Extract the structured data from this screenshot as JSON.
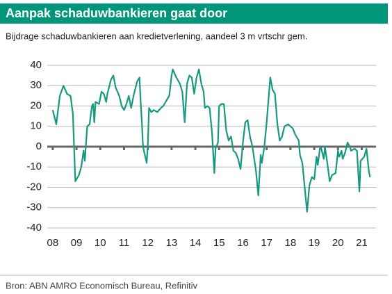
{
  "chart_data": {
    "type": "line",
    "title": "Aanpak schaduwbankieren gaat door",
    "subtitle": "Bijdrage schaduwbankieren aan kredietverlening, aandeel 3 m vrtschr gem.",
    "source": "Bron: ABN AMRO Economisch Bureau, Refinitiv",
    "x": [
      2008.0,
      2008.15,
      2008.3,
      2008.45,
      2008.6,
      2008.75,
      2008.85,
      2008.95,
      2009.1,
      2009.2,
      2009.3,
      2009.35,
      2009.45,
      2009.55,
      2009.65,
      2009.7,
      2009.75,
      2009.8,
      2009.95,
      2010.05,
      2010.15,
      2010.25,
      2010.3,
      2010.45,
      2010.55,
      2010.65,
      2010.8,
      2010.9,
      2011.0,
      2011.1,
      2011.2,
      2011.3,
      2011.4,
      2011.55,
      2011.65,
      2011.7,
      2011.75,
      2011.8,
      2011.95,
      2012.0,
      2012.05,
      2012.15,
      2012.25,
      2012.4,
      2012.55,
      2012.65,
      2012.8,
      2012.9,
      2013.0,
      2013.05,
      2013.2,
      2013.35,
      2013.45,
      2013.55,
      2013.65,
      2013.75,
      2013.85,
      2013.95,
      2014.05,
      2014.15,
      2014.25,
      2014.35,
      2014.4,
      2014.5,
      2014.6,
      2014.7,
      2014.8,
      2014.85,
      2014.95,
      2015.0,
      2015.1,
      2015.2,
      2015.3,
      2015.4,
      2015.5,
      2015.6,
      2015.7,
      2015.8,
      2015.9,
      2016.0,
      2016.1,
      2016.2,
      2016.3,
      2016.4,
      2016.55,
      2016.65,
      2016.75,
      2016.8,
      2016.9,
      2017.0,
      2017.15,
      2017.25,
      2017.35,
      2017.45,
      2017.55,
      2017.65,
      2017.75,
      2017.9,
      2018.0,
      2018.1,
      2018.2,
      2018.35,
      2018.4,
      2018.5,
      2018.6,
      2018.7,
      2018.8,
      2018.9,
      2019.0,
      2019.1,
      2019.15,
      2019.25,
      2019.3,
      2019.4,
      2019.45,
      2019.55,
      2019.65,
      2019.75,
      2019.9,
      2020.0,
      2020.05,
      2020.15,
      2020.2,
      2020.3,
      2020.4,
      2020.5,
      2020.55,
      2020.7,
      2020.8,
      2020.9,
      2020.95,
      2021.1,
      2021.2,
      2021.3,
      2021.35
    ],
    "series": [
      {
        "color": "#159a80",
        "values": [
          18,
          11,
          25,
          30,
          26,
          25,
          16,
          -17,
          -14,
          -10,
          -2,
          -7,
          10,
          11,
          20,
          21,
          12,
          22,
          21,
          27,
          26,
          22,
          26,
          33,
          35,
          29,
          25,
          20,
          18,
          21,
          25,
          19,
          25,
          32,
          34,
          22,
          12,
          0,
          -8,
          1,
          19,
          17,
          18,
          17,
          19,
          20,
          23,
          25,
          35,
          38,
          34,
          31,
          27,
          12,
          31,
          35,
          34,
          26,
          34,
          38,
          31,
          27,
          19,
          20,
          19,
          7,
          -13,
          -1,
          2,
          20,
          21,
          21,
          8,
          3,
          5,
          -2,
          -3,
          -6,
          -11,
          2,
          12,
          13,
          5,
          0,
          -12,
          -24,
          -4,
          -8,
          0,
          12,
          34,
          28,
          26,
          11,
          3,
          5,
          10,
          11,
          10,
          9,
          6,
          3,
          -4,
          -8,
          -20,
          -32,
          -19,
          -15,
          -16,
          -5,
          -9,
          0,
          -1,
          -6,
          0,
          -8,
          -17,
          -14,
          -13,
          -2,
          -5,
          -2,
          -6,
          -3,
          2,
          0,
          -2,
          -1,
          -2,
          -22,
          -7,
          -5,
          -1,
          -12,
          -15
        ]
      }
    ],
    "xlim": [
      2007.77,
      2021.6
    ],
    "xticks": [
      {
        "value": 2008,
        "label": "08"
      },
      {
        "value": 2009,
        "label": "09"
      },
      {
        "value": 2010,
        "label": "10"
      },
      {
        "value": 2011,
        "label": "11"
      },
      {
        "value": 2012,
        "label": "12"
      },
      {
        "value": 2013,
        "label": "13"
      },
      {
        "value": 2014,
        "label": "14"
      },
      {
        "value": 2015,
        "label": "15"
      },
      {
        "value": 2016,
        "label": "16"
      },
      {
        "value": 2017,
        "label": "17"
      },
      {
        "value": 2018,
        "label": "18"
      },
      {
        "value": 2019,
        "label": "19"
      },
      {
        "value": 2020,
        "label": "20"
      },
      {
        "value": 2021,
        "label": "21"
      }
    ],
    "ylim": [
      -40,
      40
    ],
    "yticks": [
      -40,
      -30,
      -20,
      -10,
      0,
      10,
      20,
      30,
      40
    ],
    "grid": true
  }
}
